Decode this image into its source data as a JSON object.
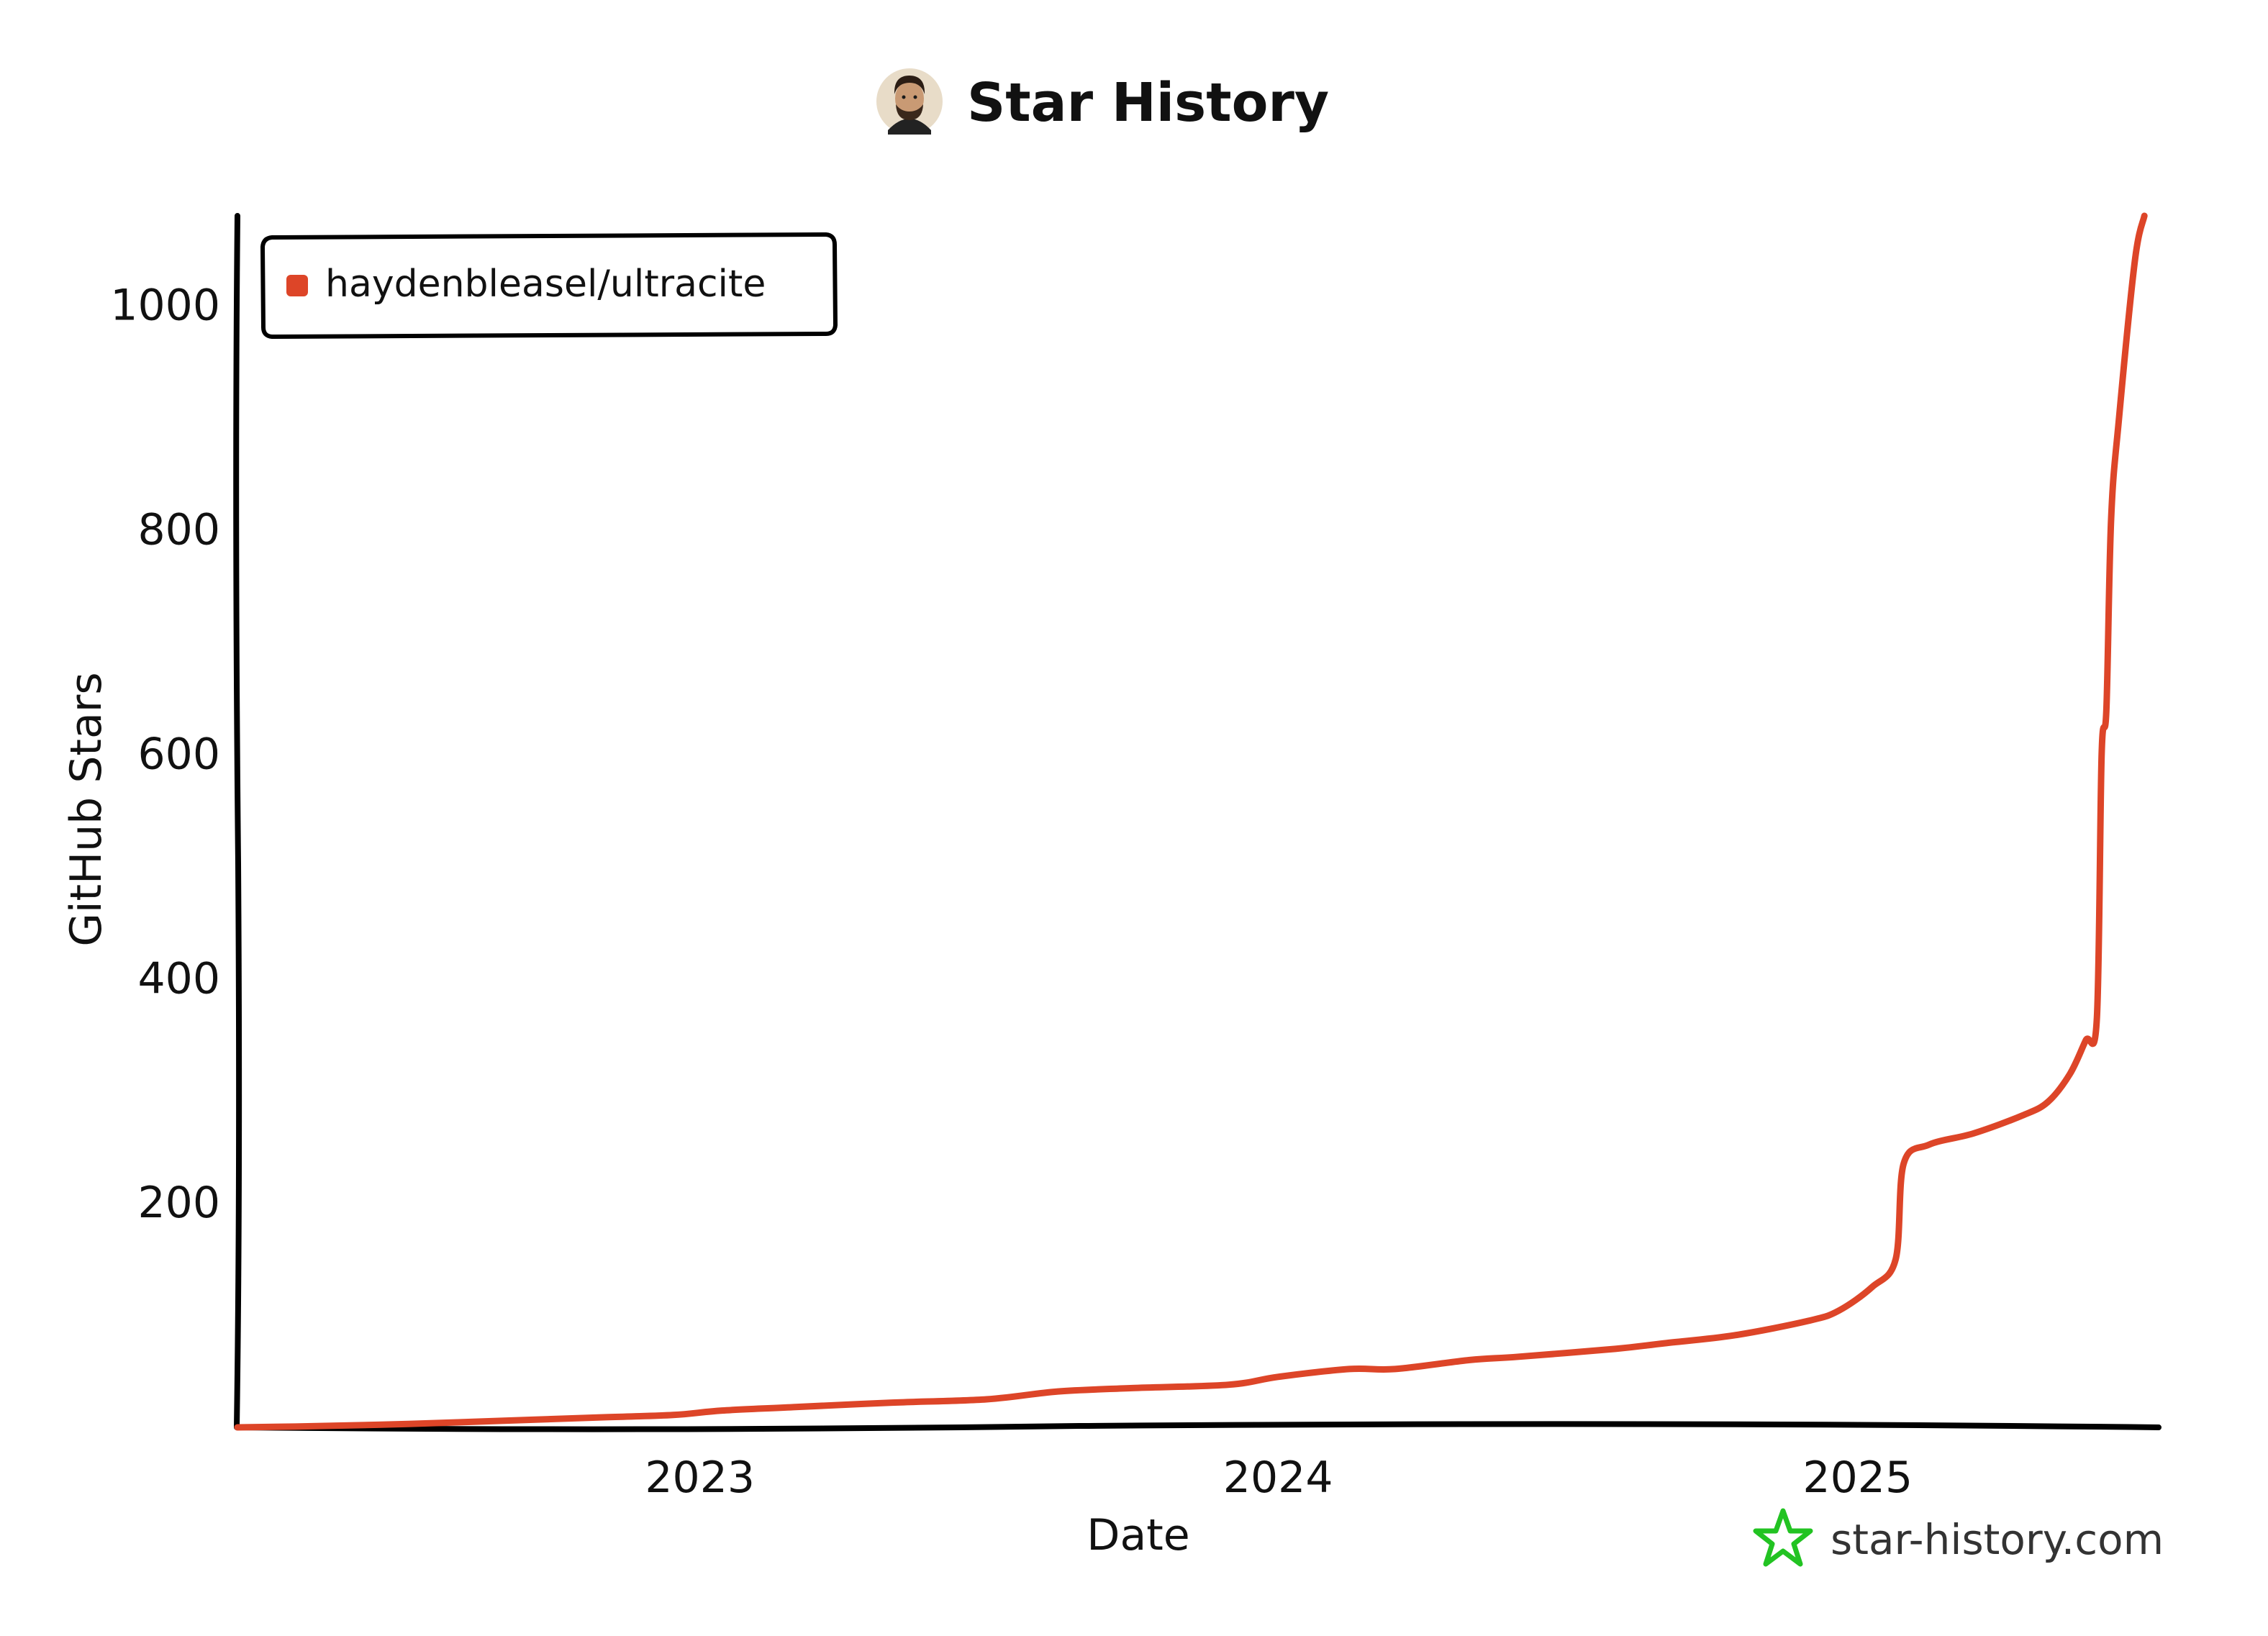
{
  "header": {
    "title": "Star History",
    "avatar_icon": "avatar-face-icon"
  },
  "watermark": {
    "text": "star-history.com",
    "icon": "star-outline-icon",
    "icon_color": "#22c322"
  },
  "chart_data": {
    "type": "line",
    "title": "Star History",
    "xlabel": "Date",
    "ylabel": "GitHub Stars",
    "x_ticks": [
      "2023",
      "2024",
      "2025"
    ],
    "y_ticks": [
      "200",
      "400",
      "600",
      "800",
      "1000"
    ],
    "xlim": [
      "2022-03-15",
      "2025-07-10"
    ],
    "ylim": [
      0,
      1080
    ],
    "grid": false,
    "legend_position": "top-left",
    "series": [
      {
        "name": "haydenbleasel/ultracite",
        "color": "#dd4528",
        "points": [
          [
            "2022-03-15",
            0
          ],
          [
            "2022-05-01",
            1
          ],
          [
            "2022-07-01",
            3
          ],
          [
            "2022-09-01",
            6
          ],
          [
            "2022-11-01",
            9
          ],
          [
            "2022-12-15",
            11
          ],
          [
            "2023-01-15",
            15
          ],
          [
            "2023-03-01",
            18
          ],
          [
            "2023-05-01",
            22
          ],
          [
            "2023-07-01",
            25
          ],
          [
            "2023-08-15",
            32
          ],
          [
            "2023-10-01",
            35
          ],
          [
            "2023-12-01",
            38
          ],
          [
            "2024-01-01",
            45
          ],
          [
            "2024-02-15",
            52
          ],
          [
            "2024-03-15",
            52
          ],
          [
            "2024-05-01",
            60
          ],
          [
            "2024-06-01",
            63
          ],
          [
            "2024-08-01",
            70
          ],
          [
            "2024-09-01",
            75
          ],
          [
            "2024-10-15",
            82
          ],
          [
            "2024-12-01",
            95
          ],
          [
            "2024-12-20",
            104
          ],
          [
            "2025-01-10",
            125
          ],
          [
            "2025-01-25",
            150
          ],
          [
            "2025-01-30",
            235
          ],
          [
            "2025-02-15",
            252
          ],
          [
            "2025-03-15",
            262
          ],
          [
            "2025-04-15",
            278
          ],
          [
            "2025-05-01",
            290
          ],
          [
            "2025-05-15",
            315
          ],
          [
            "2025-05-25",
            345
          ],
          [
            "2025-06-01",
            365
          ],
          [
            "2025-06-04",
            600
          ],
          [
            "2025-06-07",
            640
          ],
          [
            "2025-06-10",
            810
          ],
          [
            "2025-06-15",
            900
          ],
          [
            "2025-06-25",
            1040
          ],
          [
            "2025-07-01",
            1080
          ]
        ]
      }
    ]
  }
}
